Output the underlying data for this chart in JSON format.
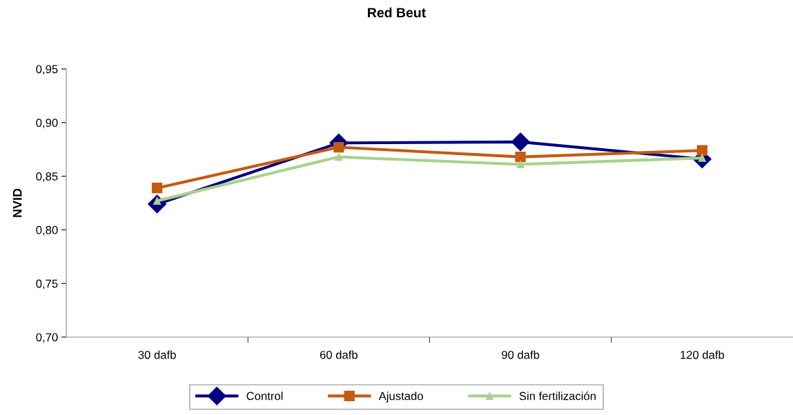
{
  "chart_data": {
    "type": "line",
    "title": "Red Beut",
    "ylabel": "NVID",
    "categories": [
      "30 dafb",
      "60 dafb",
      "90 dafb",
      "120 dafb"
    ],
    "series": [
      {
        "name": "Control",
        "color": "#000080",
        "marker": "diamond",
        "values": [
          0.824,
          0.881,
          0.882,
          0.866
        ]
      },
      {
        "name": "Ajustado",
        "color": "#c55a11",
        "marker": "square",
        "values": [
          0.839,
          0.877,
          0.868,
          0.874
        ]
      },
      {
        "name": "Sin fertilización",
        "color": "#a9d18e",
        "marker": "triangle",
        "values": [
          0.827,
          0.868,
          0.861,
          0.867
        ]
      }
    ],
    "ylim": [
      0.7,
      0.95
    ],
    "yticks": [
      {
        "value": 0.7,
        "label": "0,70"
      },
      {
        "value": 0.75,
        "label": "0,75"
      },
      {
        "value": 0.8,
        "label": "0,80"
      },
      {
        "value": 0.85,
        "label": "0,85"
      },
      {
        "value": 0.9,
        "label": "0,90"
      },
      {
        "value": 0.95,
        "label": "0,95"
      }
    ],
    "grid": false,
    "legend": "bottom",
    "line_style": "solid"
  }
}
